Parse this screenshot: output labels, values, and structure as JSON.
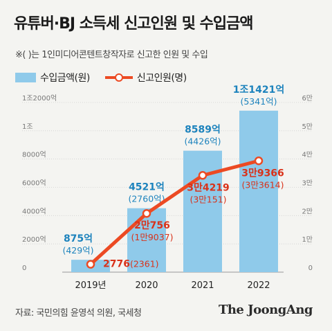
{
  "title": "유튜버·BJ 소득세 신고인원 및 수입금액",
  "note": "※( )는 1인미디어콘텐트창작자로 신고한 인원 및 수입",
  "source": "자료: 국민의힘 윤영석 의원, 국세청",
  "brand": "The JoongAng",
  "colors": {
    "bar": "#8fcaea",
    "line": "#ec4a23",
    "bar_text": "#1d83bd",
    "line_text": "#d9321a"
  },
  "chart_data": {
    "type": "bar",
    "categories": [
      "2019년",
      "2020",
      "2021",
      "2022"
    ],
    "series": [
      {
        "name": "수입금액(원)",
        "type": "bar",
        "axis": "left",
        "values": [
          875,
          4521,
          8589,
          11421
        ],
        "labels": [
          "875억",
          "4521억",
          "8589억",
          "1조1421억"
        ],
        "sublabels": [
          "(429억)",
          "(2760억)",
          "(4426억)",
          "(5341억)"
        ]
      },
      {
        "name": "신고인원(명)",
        "type": "line",
        "axis": "right",
        "values": [
          2776,
          20756,
          34219,
          39366
        ],
        "labels": [
          "2776",
          "2만756",
          "3만4219",
          "3만9366"
        ],
        "sublabels": [
          "(2361)",
          "(1만9037)",
          "(3만151)",
          "(3만3614)"
        ]
      }
    ],
    "y_left": {
      "ylim": [
        0,
        12000
      ],
      "ticks": [
        0,
        2000,
        4000,
        6000,
        8000,
        10000,
        12000
      ],
      "tick_labels": [
        "0",
        "2000억",
        "4000억",
        "6000억",
        "8000억",
        "1조",
        "1조2000억"
      ]
    },
    "y_right": {
      "ylim": [
        0,
        60000
      ],
      "ticks": [
        0,
        10000,
        20000,
        30000,
        40000,
        50000,
        60000
      ],
      "tick_labels": [
        "0",
        "1만",
        "2만",
        "3만",
        "4만",
        "5만",
        "6만"
      ]
    },
    "grid": true,
    "legend": "top-left"
  }
}
